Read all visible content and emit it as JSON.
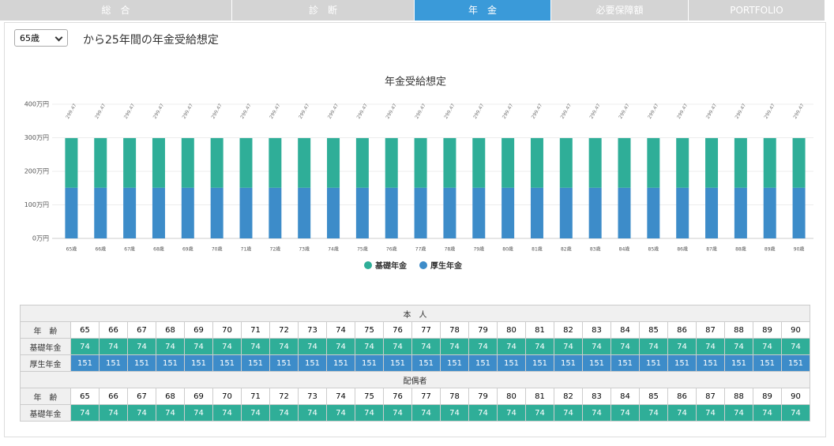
{
  "tabs": [
    "総　合",
    "診　断",
    "年　金",
    "必要保障額",
    "PORTFOLIO"
  ],
  "active_tab": 2,
  "selector": "65歳",
  "heading": "から25年間の年金受給想定",
  "chart_data": {
    "type": "bar",
    "stacked": true,
    "title": "年金受給想定",
    "categories": [
      "65歳",
      "66歳",
      "67歳",
      "68歳",
      "69歳",
      "70歳",
      "71歳",
      "72歳",
      "73歳",
      "74歳",
      "75歳",
      "76歳",
      "77歳",
      "78歳",
      "79歳",
      "80歳",
      "81歳",
      "82歳",
      "83歳",
      "84歳",
      "85歳",
      "86歳",
      "87歳",
      "88歳",
      "89歳",
      "90歳"
    ],
    "series": [
      {
        "name": "基礎年金",
        "color": "#2fae98",
        "values": [
          148,
          148,
          148,
          148,
          148,
          148,
          148,
          148,
          148,
          148,
          148,
          148,
          148,
          148,
          148,
          148,
          148,
          148,
          148,
          148,
          148,
          148,
          148,
          148,
          148,
          148
        ]
      },
      {
        "name": "厚生年金",
        "color": "#3d8cc9",
        "values": [
          151,
          151,
          151,
          151,
          151,
          151,
          151,
          151,
          151,
          151,
          151,
          151,
          151,
          151,
          151,
          151,
          151,
          151,
          151,
          151,
          151,
          151,
          151,
          151,
          151,
          151
        ]
      }
    ],
    "total_labels": [
      "299.47",
      "299.47",
      "299.47",
      "299.47",
      "299.47",
      "299.47",
      "299.47",
      "299.47",
      "299.47",
      "299.47",
      "299.47",
      "299.47",
      "299.47",
      "299.47",
      "299.47",
      "299.47",
      "299.47",
      "299.47",
      "299.47",
      "299.47",
      "299.47",
      "299.47",
      "299.47",
      "299.47",
      "299.47",
      "299.47"
    ],
    "ylim": [
      0,
      400
    ],
    "yticks": [
      {
        "value": 0,
        "label": "0万円"
      },
      {
        "value": 100,
        "label": "100万円"
      },
      {
        "value": 200,
        "label": "200万円"
      },
      {
        "value": 300,
        "label": "300万円"
      },
      {
        "value": 400,
        "label": "400万円"
      }
    ],
    "grid": true,
    "legend": "bottom"
  },
  "table": {
    "sections": [
      {
        "title": "本　人",
        "rows": [
          {
            "label": "年　齢",
            "values": [
              65,
              66,
              67,
              68,
              69,
              70,
              71,
              72,
              73,
              74,
              75,
              76,
              77,
              78,
              79,
              80,
              81,
              82,
              83,
              84,
              85,
              86,
              87,
              88,
              89,
              90
            ]
          },
          {
            "label": "基礎年金",
            "color": "#2fae98",
            "values": [
              74,
              74,
              74,
              74,
              74,
              74,
              74,
              74,
              74,
              74,
              74,
              74,
              74,
              74,
              74,
              74,
              74,
              74,
              74,
              74,
              74,
              74,
              74,
              74,
              74,
              74
            ]
          },
          {
            "label": "厚生年金",
            "color": "#3d8cc9",
            "values": [
              151,
              151,
              151,
              151,
              151,
              151,
              151,
              151,
              151,
              151,
              151,
              151,
              151,
              151,
              151,
              151,
              151,
              151,
              151,
              151,
              151,
              151,
              151,
              151,
              151,
              151
            ]
          }
        ]
      },
      {
        "title": "配偶者",
        "rows": [
          {
            "label": "年　齢",
            "values": [
              65,
              66,
              67,
              68,
              69,
              70,
              71,
              72,
              73,
              74,
              75,
              76,
              77,
              78,
              79,
              80,
              81,
              82,
              83,
              84,
              85,
              86,
              87,
              88,
              89,
              90
            ]
          },
          {
            "label": "基礎年金",
            "color": "#2fae98",
            "values": [
              74,
              74,
              74,
              74,
              74,
              74,
              74,
              74,
              74,
              74,
              74,
              74,
              74,
              74,
              74,
              74,
              74,
              74,
              74,
              74,
              74,
              74,
              74,
              74,
              74,
              74
            ]
          }
        ]
      }
    ]
  }
}
